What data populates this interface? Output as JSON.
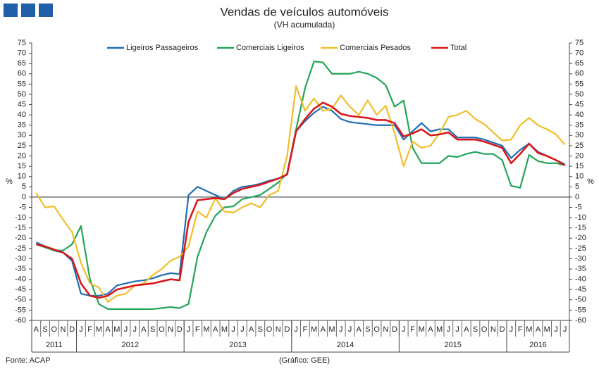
{
  "chart_data": {
    "type": "line",
    "title": "Vendas de veículos automóveis",
    "subtitle": "(VH acumulada)",
    "ylabel": "%",
    "y2label": "%",
    "source": "Fonte: ACAP",
    "note": "(Gráfico: GEE)",
    "categories": [
      "A",
      "S",
      "O",
      "N",
      "D",
      "J",
      "F",
      "M",
      "A",
      "M",
      "J",
      "J",
      "A",
      "S",
      "O",
      "N",
      "D",
      "J",
      "F",
      "M",
      "A",
      "M",
      "J",
      "J",
      "A",
      "S",
      "O",
      "N",
      "D",
      "J",
      "F",
      "M",
      "A",
      "M",
      "J",
      "J",
      "A",
      "S",
      "O",
      "N",
      "D",
      "J",
      "F",
      "M",
      "A",
      "M",
      "J",
      "J",
      "A",
      "S",
      "O",
      "N",
      "D",
      "J",
      "F",
      "M",
      "A",
      "M",
      "J",
      "J"
    ],
    "year_groups": [
      {
        "label": "2011",
        "months": 5
      },
      {
        "label": "2012",
        "months": 12
      },
      {
        "label": "2013",
        "months": 12
      },
      {
        "label": "2014",
        "months": 12
      },
      {
        "label": "2015",
        "months": 12
      },
      {
        "label": "2016",
        "months": 7
      }
    ],
    "series": [
      {
        "name": "Ligeiros Passageiros",
        "color": "#1f6eb4",
        "values": [
          -22,
          -24,
          -26,
          -27,
          -31,
          -47,
          -48,
          -48,
          -47,
          -43,
          -42,
          -41,
          -40.5,
          -39.5,
          -38,
          -37,
          -37.5,
          1,
          5,
          3,
          1,
          -1,
          3,
          5,
          5.5,
          6.5,
          8,
          9,
          11,
          32,
          37,
          41,
          44,
          42,
          38,
          36.5,
          36,
          35.5,
          35,
          35,
          35,
          28,
          32,
          36,
          32,
          33,
          33,
          29,
          29,
          29,
          28,
          26.5,
          25,
          19,
          23,
          26,
          22,
          20,
          18,
          16
        ]
      },
      {
        "name": "Comerciais Ligeiros",
        "color": "#23a55a",
        "values": [
          -23,
          -24.5,
          -26,
          -26,
          -23,
          -14,
          -40,
          -52,
          -54.5,
          -54.5,
          -54.5,
          -54.5,
          -54.5,
          -54.5,
          -54,
          -53.5,
          -54,
          -52,
          -29,
          -17,
          -9,
          -5,
          -4.5,
          -1,
          0,
          1,
          4,
          7,
          11.5,
          33,
          53,
          66,
          65.5,
          60,
          60,
          60,
          61,
          60,
          58,
          54.5,
          44,
          47,
          24,
          16.5,
          16.5,
          16.5,
          20,
          19.5,
          21,
          22,
          21,
          21,
          18,
          5.5,
          4.5,
          20.5,
          17.5,
          16.5,
          16.5,
          15.5
        ]
      },
      {
        "name": "Comerciais Pesados",
        "color": "#f0be2d",
        "values": [
          2,
          -5,
          -4.5,
          -11,
          -17,
          -32,
          -42,
          -44,
          -51,
          -48,
          -47,
          -43,
          -42,
          -38,
          -35,
          -31,
          -29,
          -24,
          -7,
          -10,
          -0.5,
          -7,
          -7.5,
          -5,
          -3,
          -5,
          1,
          3,
          20,
          54,
          42,
          48,
          42,
          43,
          49.5,
          44,
          40,
          47,
          40,
          44.5,
          31,
          15,
          27,
          24,
          25,
          31,
          39,
          40,
          42,
          38,
          35.5,
          31.5,
          27.5,
          28,
          35,
          38.5,
          35,
          33,
          30.5,
          25.5
        ]
      },
      {
        "name": "Total",
        "color": "#d7191c",
        "values": [
          -23,
          -24,
          -25.5,
          -27,
          -30,
          -42,
          -48,
          -49,
          -48,
          -45,
          -44,
          -43,
          -42.5,
          -42,
          -41,
          -40,
          -40.5,
          -12,
          -1.5,
          -1,
          -0.5,
          -1,
          2,
          4,
          5,
          6,
          7.5,
          9,
          11,
          32,
          38,
          43,
          46,
          44,
          40.5,
          39.5,
          39,
          38.5,
          37.5,
          37.5,
          36,
          29.5,
          31,
          33,
          30,
          30.5,
          31.5,
          28,
          28,
          28,
          27,
          25.5,
          24,
          16.5,
          21,
          26,
          21.5,
          20,
          18,
          15.5
        ]
      }
    ],
    "ylim": [
      -60,
      75
    ],
    "yticks": [
      -60,
      -55,
      -50,
      -45,
      -40,
      -35,
      -30,
      -25,
      -20,
      -15,
      -10,
      -5,
      0,
      5,
      10,
      15,
      20,
      25,
      30,
      35,
      40,
      45,
      50,
      55,
      60,
      65,
      70,
      75
    ],
    "y2lim": [
      -60,
      75
    ],
    "y2ticks": [
      -60,
      -55,
      -50,
      -45,
      -40,
      -35,
      -30,
      -25,
      -20,
      -15,
      -10,
      -5,
      0,
      5,
      10,
      15,
      20,
      25,
      30,
      35,
      40,
      45,
      50,
      55,
      60,
      65,
      70,
      75
    ],
    "legend": "top"
  }
}
